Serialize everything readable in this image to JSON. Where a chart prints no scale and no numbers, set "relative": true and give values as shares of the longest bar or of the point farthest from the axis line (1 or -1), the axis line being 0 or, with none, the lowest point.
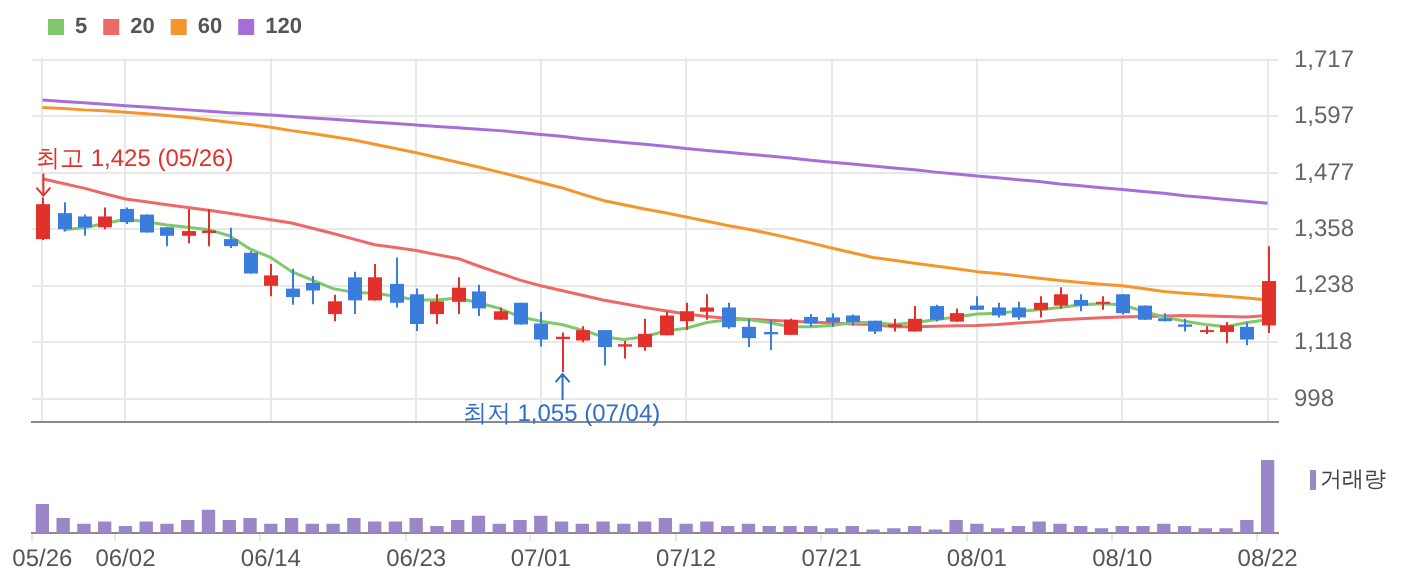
{
  "chart_data": [
    {
      "type": "candlestick",
      "categories": [
        "05/26",
        null,
        null,
        null,
        "06/02",
        null,
        null,
        null,
        null,
        null,
        null,
        "06/14",
        null,
        null,
        null,
        null,
        null,
        null,
        "06/23",
        null,
        null,
        null,
        null,
        null,
        "07/01",
        null,
        null,
        null,
        null,
        null,
        null,
        "07/12",
        null,
        null,
        null,
        null,
        null,
        null,
        "07/21",
        null,
        null,
        null,
        null,
        null,
        null,
        "08/01",
        null,
        null,
        null,
        null,
        null,
        null,
        "08/10",
        null,
        null,
        null,
        null,
        null,
        null,
        "08/22"
      ],
      "ohlc": [
        [
          1337,
          1425,
          1335,
          1411
        ],
        [
          1392,
          1415,
          1353,
          1358
        ],
        [
          1385,
          1389,
          1344,
          1362
        ],
        [
          1362,
          1404,
          1358,
          1385
        ],
        [
          1401,
          1404,
          1369,
          1373
        ],
        [
          1389,
          1389,
          1351,
          1351
        ],
        [
          1362,
          1362,
          1322,
          1344
        ],
        [
          1344,
          1401,
          1328,
          1354
        ],
        [
          1350,
          1401,
          1322,
          1355
        ],
        [
          1337,
          1361,
          1318,
          1322
        ],
        [
          1308,
          1311,
          1264,
          1264
        ],
        [
          1238,
          1284,
          1216,
          1260
        ],
        [
          1232,
          1274,
          1198,
          1214
        ],
        [
          1244,
          1259,
          1199,
          1228
        ],
        [
          1178,
          1219,
          1163,
          1205
        ],
        [
          1256,
          1268,
          1178,
          1207
        ],
        [
          1207,
          1284,
          1207,
          1256
        ],
        [
          1242,
          1298,
          1192,
          1202
        ],
        [
          1220,
          1232,
          1142,
          1157
        ],
        [
          1178,
          1220,
          1157,
          1205
        ],
        [
          1204,
          1256,
          1178,
          1234
        ],
        [
          1226,
          1240,
          1174,
          1190
        ],
        [
          1166,
          1192,
          1166,
          1184
        ],
        [
          1202,
          1202,
          1156,
          1156
        ],
        [
          1158,
          1183,
          1109,
          1124
        ],
        [
          1125,
          1139,
          1055,
          1130
        ],
        [
          1122,
          1152,
          1118,
          1144
        ],
        [
          1144,
          1144,
          1069,
          1108
        ],
        [
          1109,
          1121,
          1084,
          1114
        ],
        [
          1108,
          1168,
          1100,
          1136
        ],
        [
          1133,
          1184,
          1133,
          1175
        ],
        [
          1163,
          1202,
          1144,
          1184
        ],
        [
          1183,
          1220,
          1166,
          1192
        ],
        [
          1192,
          1202,
          1147,
          1150
        ],
        [
          1151,
          1168,
          1108,
          1127
        ],
        [
          1140,
          1166,
          1102,
          1135
        ],
        [
          1134,
          1168,
          1134,
          1166
        ],
        [
          1172,
          1178,
          1151,
          1158
        ],
        [
          1171,
          1180,
          1151,
          1161
        ],
        [
          1175,
          1177,
          1154,
          1161
        ],
        [
          1164,
          1164,
          1136,
          1141
        ],
        [
          1151,
          1168,
          1141,
          1156
        ],
        [
          1141,
          1195,
          1141,
          1168
        ],
        [
          1195,
          1198,
          1162,
          1166
        ],
        [
          1162,
          1190,
          1162,
          1180
        ],
        [
          1196,
          1216,
          1187,
          1187
        ],
        [
          1192,
          1202,
          1171,
          1175
        ],
        [
          1192,
          1204,
          1166,
          1171
        ],
        [
          1187,
          1216,
          1171,
          1202
        ],
        [
          1196,
          1235,
          1190,
          1220
        ],
        [
          1208,
          1220,
          1184,
          1196
        ],
        [
          1201,
          1216,
          1187,
          1204
        ],
        [
          1220,
          1220,
          1177,
          1180
        ],
        [
          1196,
          1196,
          1166,
          1166
        ],
        [
          1169,
          1180,
          1163,
          1163
        ],
        [
          1156,
          1168,
          1141,
          1151
        ],
        [
          1141,
          1152,
          1136,
          1144
        ],
        [
          1140,
          1161,
          1116,
          1154
        ],
        [
          1151,
          1160,
          1112,
          1124
        ],
        [
          1154,
          1322,
          1138,
          1248
        ]
      ],
      "colors": [
        "#e2302b",
        "#3b7ddd",
        "#3b7ddd",
        "#e2302b",
        "#3b7ddd",
        "#3b7ddd",
        "#3b7ddd",
        "#e2302b",
        "#e2302b",
        "#3b7ddd",
        "#3b7ddd",
        "#e2302b",
        "#3b7ddd",
        "#3b7ddd",
        "#e2302b",
        "#3b7ddd",
        "#e2302b",
        "#3b7ddd",
        "#3b7ddd",
        "#e2302b",
        "#e2302b",
        "#3b7ddd",
        "#e2302b",
        "#3b7ddd",
        "#3b7ddd",
        "#e2302b",
        "#e2302b",
        "#3b7ddd",
        "#e2302b",
        "#e2302b",
        "#e2302b",
        "#e2302b",
        "#e2302b",
        "#3b7ddd",
        "#3b7ddd",
        "#3b7ddd",
        "#e2302b",
        "#3b7ddd",
        "#3b7ddd",
        "#3b7ddd",
        "#3b7ddd",
        "#e2302b",
        "#e2302b",
        "#3b7ddd",
        "#e2302b",
        "#3b7ddd",
        "#3b7ddd",
        "#3b7ddd",
        "#e2302b",
        "#e2302b",
        "#3b7ddd",
        "#e2302b",
        "#3b7ddd",
        "#3b7ddd",
        "#3b7ddd",
        "#3b7ddd",
        "#e2302b",
        "#e2302b",
        "#3b7ddd",
        "#e2302b"
      ],
      "series": [
        {
          "name": "5",
          "type": "line",
          "color": "#7fc86c",
          "values": [
            null,
            1357,
            1361,
            1370,
            1379,
            1374,
            1367,
            1362,
            1357,
            1344,
            1316,
            1298,
            1268,
            1250,
            1232,
            1224,
            1222,
            1216,
            1208,
            1208,
            1212,
            1202,
            1190,
            1172,
            1163,
            1156,
            1144,
            1130,
            1124,
            1130,
            1142,
            1148,
            1160,
            1166,
            1166,
            1160,
            1151,
            1151,
            1154,
            1160,
            1160,
            1156,
            1160,
            1166,
            1172,
            1178,
            1180,
            1184,
            1187,
            1192,
            1198,
            1200,
            1198,
            1184,
            1172,
            1163,
            1156,
            1151,
            1160,
            1166
          ]
        },
        {
          "name": "20",
          "type": "line",
          "color": "#ef6868",
          "values": [
            1465,
            1455,
            1445,
            1433,
            1422,
            1416,
            1410,
            1404,
            1398,
            1392,
            1385,
            1378,
            1371,
            1360,
            1349,
            1337,
            1325,
            1319,
            1313,
            1304,
            1296,
            1280,
            1265,
            1250,
            1238,
            1228,
            1218,
            1208,
            1200,
            1192,
            1185,
            1178,
            1173,
            1169,
            1167,
            1165,
            1163,
            1161,
            1159,
            1157,
            1156,
            1151,
            1151,
            1152,
            1153,
            1154,
            1156,
            1159,
            1162,
            1166,
            1168,
            1170,
            1172,
            1173,
            1174,
            1175,
            1174,
            1173,
            1172,
            1175
          ]
        },
        {
          "name": "60",
          "type": "line",
          "color": "#f5962c",
          "values": [
            1616,
            1614,
            1611,
            1609,
            1606,
            1603,
            1599,
            1595,
            1590,
            1585,
            1580,
            1574,
            1567,
            1561,
            1554,
            1547,
            1538,
            1529,
            1520,
            1510,
            1500,
            1490,
            1479,
            1468,
            1457,
            1446,
            1432,
            1419,
            1410,
            1401,
            1393,
            1384,
            1375,
            1366,
            1358,
            1349,
            1339,
            1329,
            1318,
            1308,
            1298,
            1292,
            1286,
            1280,
            1274,
            1268,
            1264,
            1259,
            1254,
            1249,
            1245,
            1241,
            1238,
            1232,
            1226,
            1222,
            1219,
            1216,
            1212,
            1208
          ]
        },
        {
          "name": "120",
          "type": "line",
          "color": "#a66fd8",
          "values": [
            1632,
            1629,
            1626,
            1623,
            1620,
            1617,
            1614,
            1611,
            1608,
            1605,
            1603,
            1600,
            1597,
            1594,
            1591,
            1588,
            1585,
            1582,
            1579,
            1576,
            1573,
            1570,
            1567,
            1563,
            1559,
            1555,
            1550,
            1546,
            1542,
            1538,
            1534,
            1529,
            1525,
            1521,
            1517,
            1513,
            1509,
            1504,
            1500,
            1496,
            1492,
            1488,
            1484,
            1479,
            1475,
            1471,
            1467,
            1463,
            1459,
            1454,
            1450,
            1446,
            1442,
            1438,
            1434,
            1429,
            1425,
            1421,
            1417,
            1413
          ]
        }
      ],
      "ylim": [
        950,
        1721
      ],
      "yticks": [
        {
          "value": 998,
          "label": "998"
        },
        {
          "value": 1118,
          "label": "1,118"
        },
        {
          "value": 1238,
          "label": "1,238"
        },
        {
          "value": 1358,
          "label": "1,358"
        },
        {
          "value": 1477,
          "label": "1,477"
        },
        {
          "value": 1597,
          "label": "1,597"
        },
        {
          "value": 1717,
          "label": "1,717"
        }
      ],
      "annotations": [
        {
          "text": "최고 1,425 (05/26)",
          "x": "05/26",
          "y": 1425
        },
        "최저 1,055 (07/04)"
      ],
      "grid": true,
      "legend": "top left",
      "marker": "none",
      "line_style": "solid",
      "tick_labels": "y"
    },
    {
      "type": "bar",
      "categories": [
        "05/26",
        null,
        null,
        null,
        "06/02",
        null,
        null,
        null,
        null,
        null,
        null,
        "06/14",
        null,
        null,
        null,
        null,
        null,
        null,
        "06/23",
        null,
        null,
        null,
        null,
        null,
        "07/01",
        null,
        null,
        null,
        null,
        null,
        null,
        "07/12",
        null,
        null,
        null,
        null,
        null,
        null,
        "07/21",
        null,
        null,
        null,
        null,
        null,
        null,
        "08/01",
        null,
        null,
        null,
        null,
        null,
        null,
        "08/10",
        null,
        null,
        null,
        null,
        null,
        null,
        "08/22"
      ],
      "series": [
        {
          "name": "거래량",
          "color": "#9b86c8",
          "values": [
            0.39,
            0.2,
            0.12,
            0.15,
            0.09,
            0.15,
            0.12,
            0.17,
            0.31,
            0.17,
            0.2,
            0.12,
            0.2,
            0.12,
            0.12,
            0.2,
            0.15,
            0.15,
            0.2,
            0.09,
            0.17,
            0.23,
            0.12,
            0.17,
            0.23,
            0.15,
            0.12,
            0.15,
            0.12,
            0.15,
            0.2,
            0.12,
            0.15,
            0.09,
            0.12,
            0.09,
            0.09,
            0.09,
            0.06,
            0.09,
            0.04,
            0.06,
            0.09,
            0.04,
            0.17,
            0.12,
            0.06,
            0.09,
            0.15,
            0.12,
            0.09,
            0.06,
            0.09,
            0.09,
            0.12,
            0.09,
            0.06,
            0.06,
            0.17,
            1
          ]
        }
      ],
      "relative": true,
      "legend": "right",
      "tick_labels": "x"
    }
  ]
}
